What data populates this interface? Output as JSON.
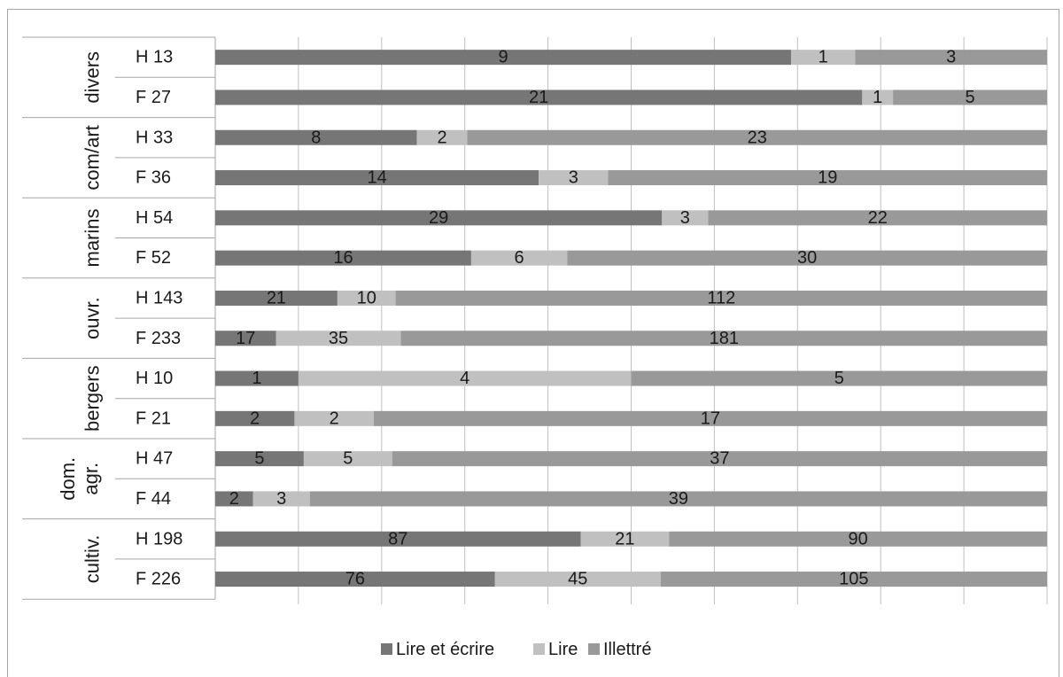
{
  "chart_data": {
    "type": "bar",
    "orientation": "horizontal",
    "stacked": "percent",
    "groups": [
      {
        "label": "divers",
        "rows": [
          {
            "label": "H  13",
            "values": [
              9,
              1,
              3
            ]
          },
          {
            "label": "F  27",
            "values": [
              21,
              1,
              5
            ]
          }
        ]
      },
      {
        "label": "com/art",
        "rows": [
          {
            "label": "H  33",
            "values": [
              8,
              2,
              23
            ]
          },
          {
            "label": "F  36",
            "values": [
              14,
              3,
              19
            ]
          }
        ]
      },
      {
        "label": "marins",
        "rows": [
          {
            "label": "H  54",
            "values": [
              29,
              3,
              22
            ]
          },
          {
            "label": "F  52",
            "values": [
              16,
              6,
              30
            ]
          }
        ]
      },
      {
        "label": "ouvr.",
        "rows": [
          {
            "label": "H 143",
            "values": [
              21,
              10,
              112
            ]
          },
          {
            "label": "F 233",
            "values": [
              17,
              35,
              181
            ]
          }
        ]
      },
      {
        "label": "bergers",
        "rows": [
          {
            "label": "H 10",
            "values": [
              1,
              4,
              5
            ]
          },
          {
            "label": "F  21",
            "values": [
              2,
              2,
              17
            ]
          }
        ]
      },
      {
        "label": "dom. agr.",
        "rows": [
          {
            "label": "H  47",
            "values": [
              5,
              5,
              37
            ]
          },
          {
            "label": "F  44",
            "values": [
              2,
              3,
              39
            ]
          }
        ]
      },
      {
        "label": "cultiv.",
        "rows": [
          {
            "label": "H 198",
            "values": [
              87,
              21,
              90
            ]
          },
          {
            "label": "F  226",
            "values": [
              76,
              45,
              105
            ]
          }
        ]
      }
    ],
    "series": [
      {
        "name": "Lire et écrire",
        "color": "#767676"
      },
      {
        "name": "Lire",
        "color": "#c0c0c0"
      },
      {
        "name": "Illettré",
        "color": "#999999"
      }
    ],
    "xlim": [
      0,
      100
    ],
    "grid": true,
    "legend": "bottom"
  }
}
